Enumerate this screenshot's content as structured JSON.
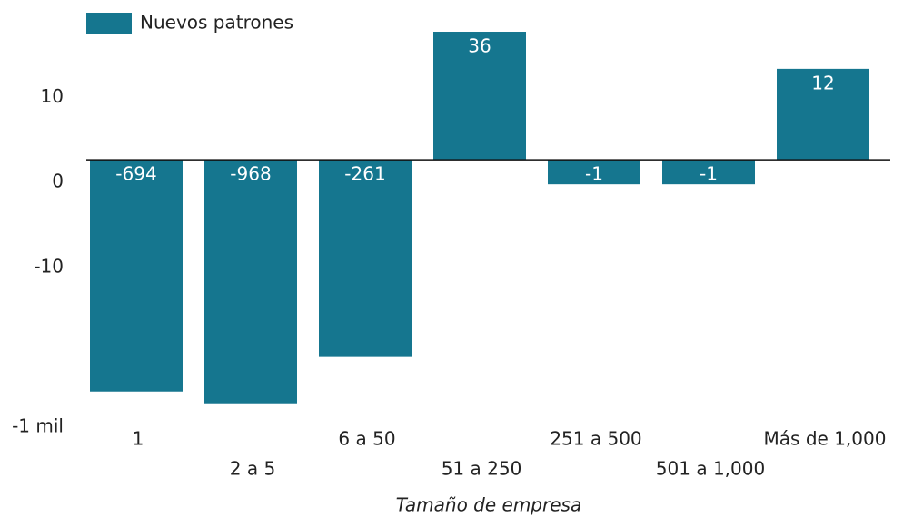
{
  "chart_data": {
    "type": "bar",
    "yscale": "symlog",
    "x_label": "Tamaño de empresa",
    "categories": [
      "1",
      "2 a 5",
      "6 a 50",
      "51 a 250",
      "251 a 500",
      "501 a 1,000",
      "Más de 1,000"
    ],
    "series": [
      {
        "name": "Nuevos patrones",
        "color": "#15768f",
        "values": [
          -694,
          -968,
          -261,
          36,
          -1,
          -1,
          12
        ]
      }
    ],
    "ylim": [
      -1000,
      40
    ],
    "yticks": [
      10,
      0,
      -10,
      {
        "value": -1000,
        "label": "-1 mil"
      }
    ]
  }
}
